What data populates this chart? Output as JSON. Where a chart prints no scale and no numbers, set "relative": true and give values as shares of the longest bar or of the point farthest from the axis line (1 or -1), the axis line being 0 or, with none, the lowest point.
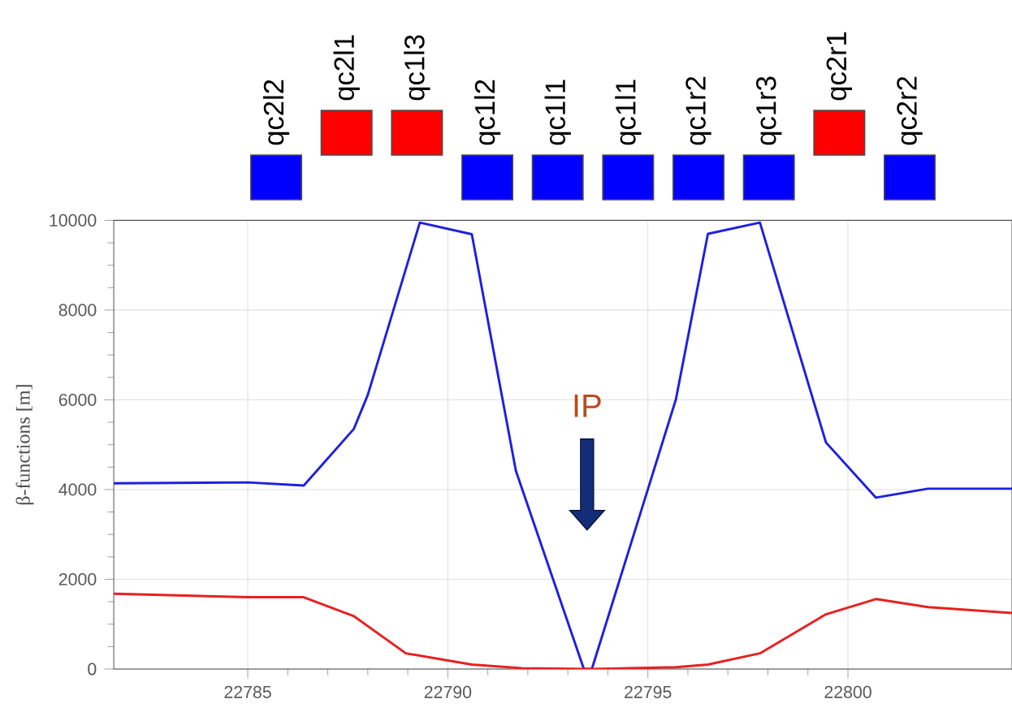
{
  "chart_data": [
    {
      "type": "bar",
      "relative": true,
      "categories": [
        "qc2l2",
        "qc2l1",
        "qc1l3",
        "qc1l2",
        "qc1l1",
        "qc1l1",
        "qc1r2",
        "qc1r3",
        "qc2r1",
        "qc2r2"
      ],
      "values": [
        -1,
        1,
        1,
        -1,
        -1,
        -1,
        -1,
        -1,
        1,
        -1
      ],
      "colors": [
        "#0000ff",
        "#ff0000",
        "#ff0000",
        "#0000ff",
        "#0000ff",
        "#0000ff",
        "#0000ff",
        "#0000ff",
        "#ff0000",
        "#0000ff"
      ]
    },
    {
      "type": "line",
      "ylabel": "β-functions [m]",
      "grid": true,
      "xlim": [
        22781.65,
        22804.1
      ],
      "ylim": [
        0,
        10000
      ],
      "xticks": [
        22785,
        22790,
        22795,
        22800
      ],
      "yticks": [
        0,
        2000,
        4000,
        6000,
        8000,
        10000
      ],
      "series": [
        {
          "color": "#1f1fe0",
          "x": [
            22781.65,
            22785,
            22786.4,
            22787.65,
            22788.0,
            22789.3,
            22790.6,
            22791.7,
            22793.4,
            22793.6,
            22795.7,
            22796.5,
            22797.8,
            22799.45,
            22800.7,
            22802.0,
            22804.1
          ],
          "values": [
            4140,
            4160,
            4090,
            5350,
            6110,
            9950,
            9690,
            4420,
            0,
            0,
            6010,
            9700,
            9950,
            5050,
            3820,
            4020,
            4020
          ]
        },
        {
          "color": "#e82020",
          "x": [
            22781.65,
            22785,
            22786.4,
            22787.65,
            22788.95,
            22790.6,
            22791.85,
            22793.6,
            22795.7,
            22796.5,
            22797.8,
            22799.45,
            22800.7,
            22802.0,
            22804.1
          ],
          "values": [
            1680,
            1600,
            1600,
            1180,
            350,
            100,
            20,
            0,
            40,
            100,
            350,
            1220,
            1560,
            1380,
            1250
          ]
        }
      ],
      "annotations": [
        "IP"
      ]
    }
  ]
}
